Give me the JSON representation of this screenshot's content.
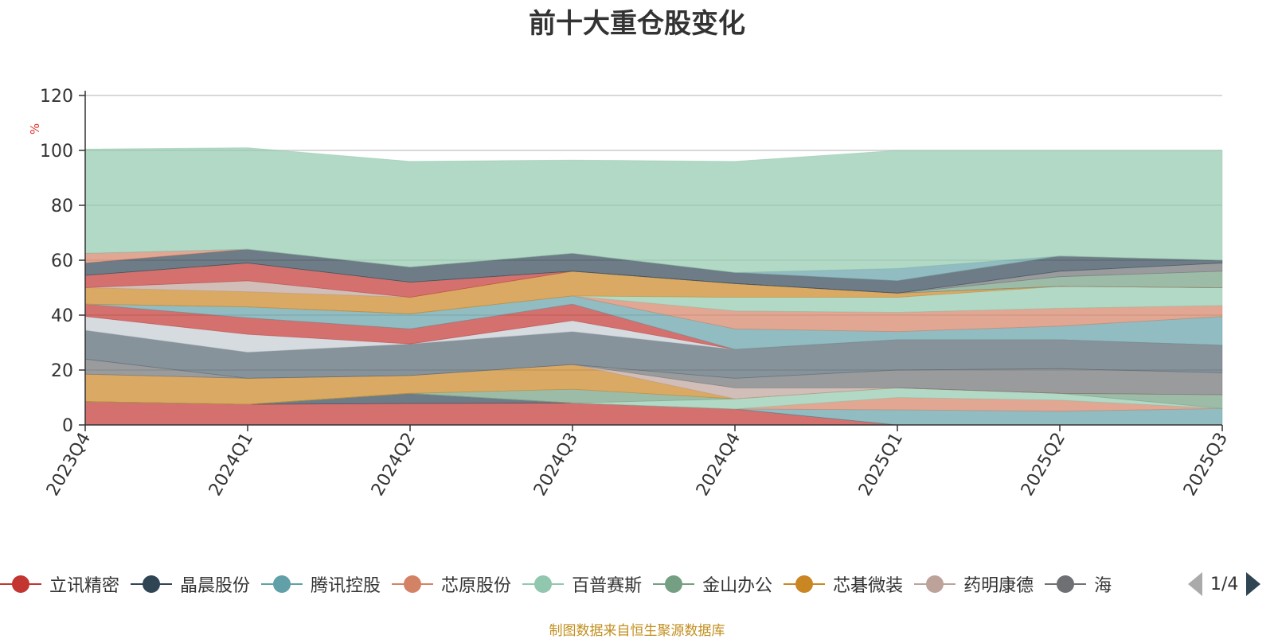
{
  "chart_data": {
    "type": "area",
    "title": "前十大重仓股变化",
    "ylabel": "%",
    "ylim": [
      0,
      120
    ],
    "yticks": [
      0,
      20,
      40,
      60,
      80,
      100,
      120
    ],
    "categories": [
      "2023Q4",
      "2024Q1",
      "2024Q2",
      "2024Q3",
      "2024Q4",
      "2025Q1",
      "2025Q2",
      "2025Q3"
    ],
    "stack_layers": [
      {
        "color": "#c23531",
        "values": [
          8.5,
          7.5,
          7.8,
          8.0,
          5.8,
          0.0,
          0.0,
          0.0
        ]
      },
      {
        "color": "#2f4554",
        "values": [
          0.0,
          0.0,
          3.7,
          0.0,
          0.0,
          0.0,
          0.0,
          0.0
        ]
      },
      {
        "color": "#61a0a8",
        "values": [
          0.0,
          0.0,
          0.0,
          0.0,
          0.0,
          5.5,
          5.0,
          6.0
        ]
      },
      {
        "color": "#d48265",
        "values": [
          0.0,
          0.0,
          0.0,
          0.0,
          0.0,
          4.5,
          4.0,
          0.0
        ]
      },
      {
        "color": "#91c7ae",
        "values": [
          0.0,
          0.0,
          0.0,
          0.0,
          3.7,
          3.5,
          2.5,
          0.0
        ]
      },
      {
        "color": "#749f83",
        "values": [
          0.0,
          0.0,
          0.0,
          5.0,
          0.0,
          0.0,
          0.0,
          5.0
        ]
      },
      {
        "color": "#ca8622",
        "values": [
          10.0,
          9.5,
          6.5,
          9.0,
          0.0,
          0.0,
          0.0,
          0.0
        ]
      },
      {
        "color": "#bda29a",
        "values": [
          0.0,
          0.0,
          0.0,
          0.0,
          4.0,
          0.0,
          0.0,
          0.0
        ]
      },
      {
        "color": "#6e7074",
        "values": [
          5.5,
          0.0,
          0.0,
          0.0,
          3.5,
          6.5,
          9.0,
          8.0
        ]
      },
      {
        "color": "#546570",
        "values": [
          10.5,
          9.5,
          11.5,
          12.0,
          10.5,
          11.0,
          10.5,
          10.0
        ]
      },
      {
        "color": "#c4ccd3",
        "values": [
          5.0,
          6.5,
          0.0,
          4.0,
          0.0,
          0.0,
          0.0,
          0.0
        ]
      },
      {
        "color": "#c23531",
        "values": [
          4.5,
          6.0,
          5.5,
          6.0,
          0.0,
          0.0,
          0.0,
          0.0
        ]
      },
      {
        "color": "#61a0a8",
        "values": [
          0.0,
          4.0,
          5.5,
          3.0,
          7.5,
          3.0,
          5.0,
          10.5
        ]
      },
      {
        "color": "#d48265",
        "values": [
          0.0,
          0.0,
          0.0,
          0.0,
          6.5,
          7.0,
          6.5,
          4.0
        ]
      },
      {
        "color": "#91c7ae",
        "values": [
          0.0,
          0.0,
          0.0,
          0.0,
          5.0,
          5.5,
          8.0,
          6.5
        ]
      },
      {
        "color": "#ca8622",
        "values": [
          6.0,
          5.5,
          6.0,
          9.0,
          5.0,
          1.5,
          0.0,
          0.0
        ]
      },
      {
        "color": "#bda29a",
        "values": [
          0.0,
          4.0,
          0.0,
          0.0,
          0.0,
          0.0,
          0.0,
          0.0
        ]
      },
      {
        "color": "#c23531",
        "values": [
          4.5,
          6.5,
          5.5,
          0.0,
          0.0,
          0.0,
          0.0,
          0.0
        ]
      },
      {
        "color": "#749f83",
        "values": [
          0.0,
          0.0,
          0.0,
          0.0,
          0.0,
          0.0,
          3.5,
          6.0
        ]
      },
      {
        "color": "#6e7074",
        "values": [
          0.0,
          0.0,
          0.0,
          0.0,
          0.0,
          0.0,
          2.0,
          3.0
        ]
      },
      {
        "color": "#2f4554",
        "values": [
          4.5,
          5.0,
          5.5,
          6.5,
          4.0,
          4.5,
          5.5,
          1.0
        ]
      },
      {
        "color": "#d48265",
        "values": [
          3.5,
          0.0,
          0.0,
          0.0,
          0.0,
          0.0,
          0.0,
          0.0
        ]
      },
      {
        "color": "#61a0a8",
        "values": [
          0.0,
          0.0,
          0.0,
          0.0,
          0.0,
          4.5,
          0.0,
          0.0
        ]
      },
      {
        "color": "#91c7ae",
        "values": [
          38.0,
          37.0,
          38.5,
          34.0,
          40.5,
          43.0,
          38.5,
          40.0
        ]
      }
    ]
  },
  "legend": {
    "items": [
      {
        "label": "立讯精密",
        "color": "#c23531"
      },
      {
        "label": "晶晨股份",
        "color": "#2f4554"
      },
      {
        "label": "腾讯控股",
        "color": "#61a0a8"
      },
      {
        "label": "芯原股份",
        "color": "#d48265"
      },
      {
        "label": "百普赛斯",
        "color": "#91c7ae"
      },
      {
        "label": "金山办公",
        "color": "#749f83"
      },
      {
        "label": "芯碁微装",
        "color": "#ca8622"
      },
      {
        "label": "药明康德",
        "color": "#bda29a"
      },
      {
        "label": "海",
        "color": "#6e7074"
      }
    ],
    "page_indicator": "1/4"
  },
  "source_note": "制图数据来自恒生聚源数据库"
}
